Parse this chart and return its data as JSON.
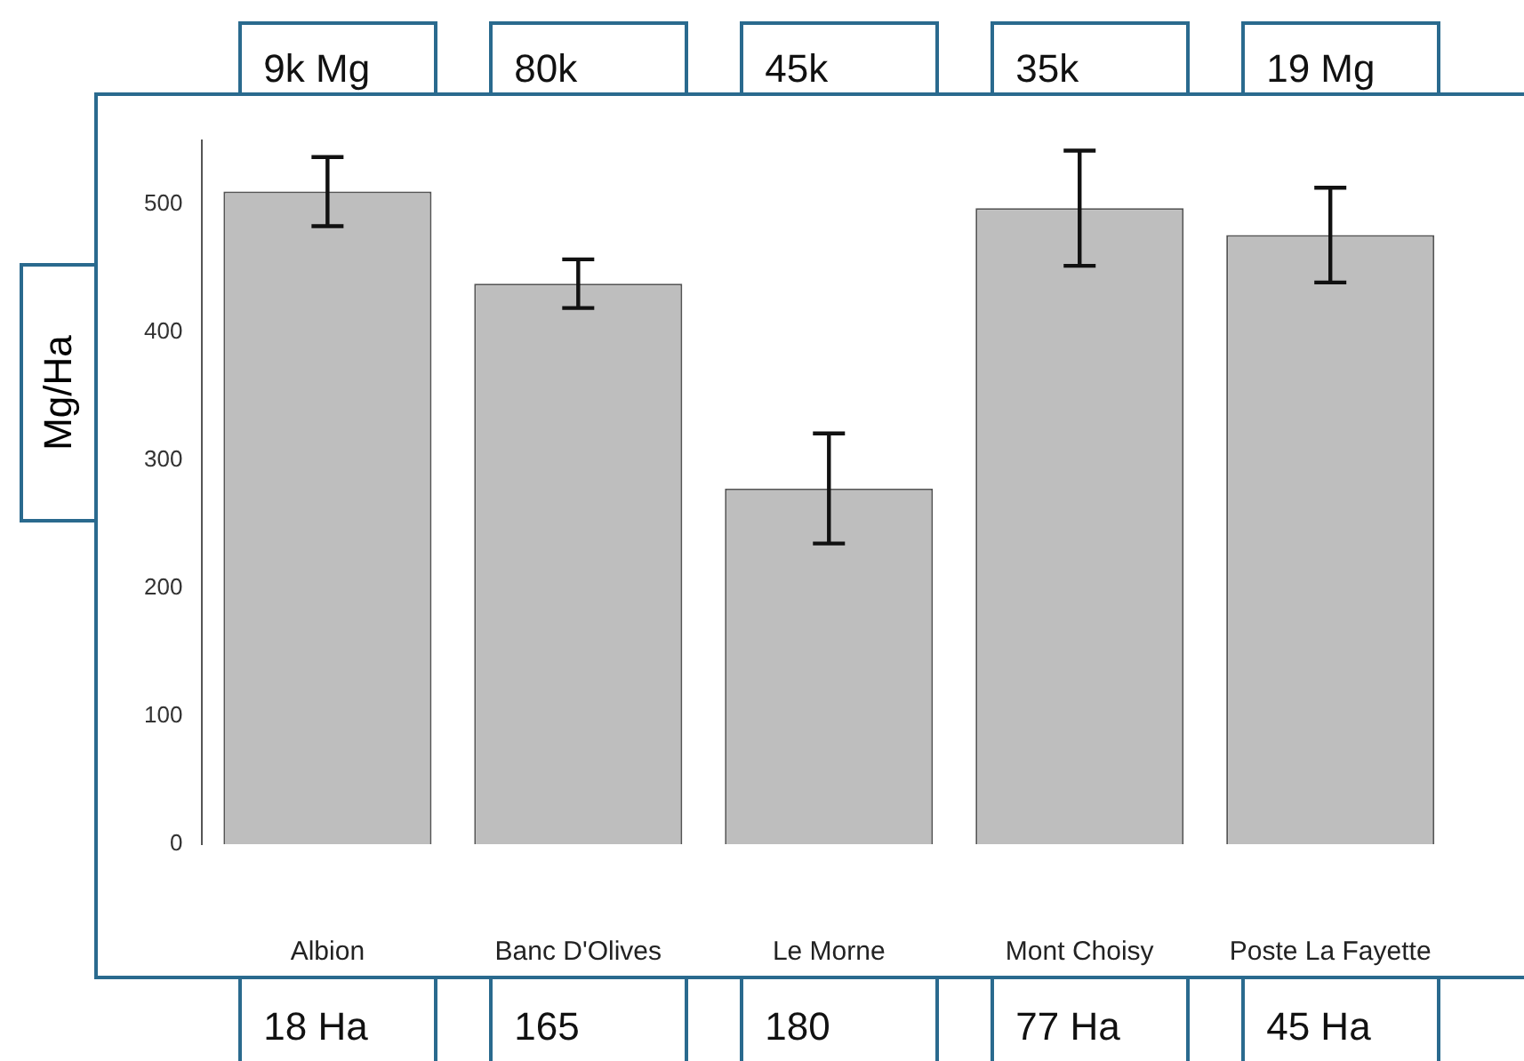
{
  "chart_data": {
    "type": "bar",
    "ylabel": "Mg/Ha",
    "categories": [
      "Albion",
      "Banc D'Olives",
      "Le Morne",
      "Mont Choisy",
      "Poste La Fayette"
    ],
    "values": [
      510,
      438,
      278,
      497,
      476
    ],
    "errors": [
      27,
      19,
      43,
      45,
      37
    ],
    "color": "#bebebe",
    "ylim": [
      0,
      550
    ],
    "yticks": [
      0,
      100,
      200,
      300,
      400,
      500
    ],
    "grid": false,
    "annotations": [
      "9k Mg",
      "80k",
      "45k",
      "35k",
      "19 Mg",
      "18 Ha",
      "165",
      "180",
      "77 Ha",
      "45 Ha"
    ]
  }
}
